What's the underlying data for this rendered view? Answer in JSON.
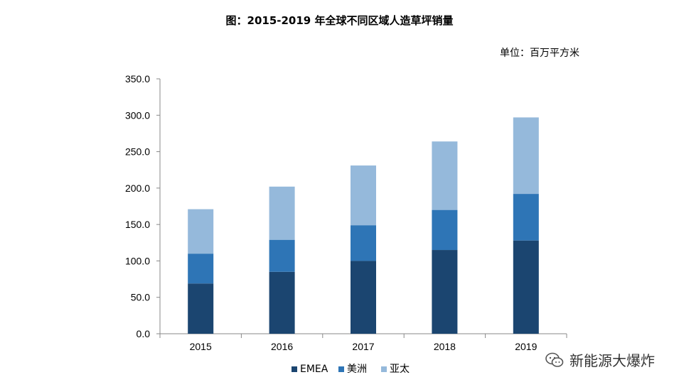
{
  "title": "图：2015-2019 年全球不同区域人造草坪销量",
  "unit_label": "单位：百万平方米",
  "watermark": {
    "text": "新能源大爆炸",
    "icon": "wechat-icon"
  },
  "chart_data": {
    "type": "bar",
    "stacked": true,
    "title": "图：2015-2019 年全球不同区域人造草坪销量",
    "xlabel": "",
    "ylabel": "",
    "ylim": [
      0,
      350
    ],
    "yticks": [
      "0.0",
      "50.0",
      "100.0",
      "150.0",
      "200.0",
      "250.0",
      "300.0",
      "350.0"
    ],
    "categories": [
      "2015",
      "2016",
      "2017",
      "2018",
      "2019"
    ],
    "series": [
      {
        "name": "EMEA",
        "values": [
          69,
          85,
          100,
          115,
          128
        ],
        "color": "#1b4570"
      },
      {
        "name": "美洲",
        "values": [
          41,
          44,
          49,
          55,
          64
        ],
        "color": "#2e75b6"
      },
      {
        "name": "亚太",
        "values": [
          61,
          73,
          82,
          94,
          105
        ],
        "color": "#95b9db"
      }
    ],
    "legend_position": "bottom",
    "grid": false
  }
}
